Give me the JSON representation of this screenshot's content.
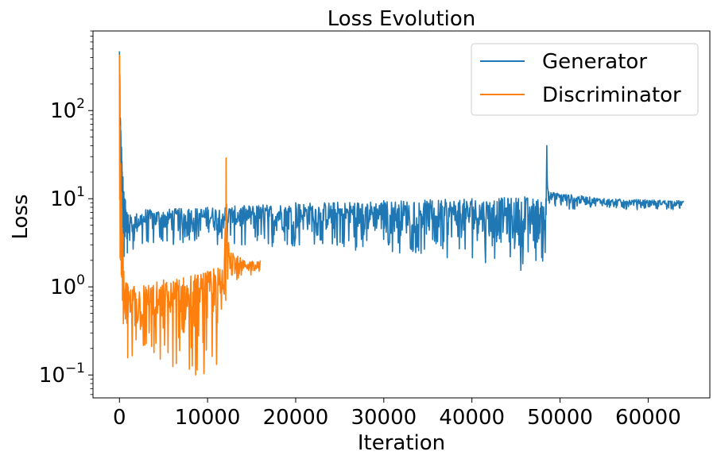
{
  "chart_data": {
    "type": "line",
    "title": "Loss Evolution",
    "xlabel": "Iteration",
    "ylabel": "Loss",
    "yscale": "log",
    "xlim": [
      -3000,
      67000
    ],
    "ylim": [
      0.055,
      800
    ],
    "x_ticks": [
      0,
      10000,
      20000,
      30000,
      40000,
      50000,
      60000
    ],
    "x_tick_labels": [
      "0",
      "10000",
      "20000",
      "30000",
      "40000",
      "50000",
      "60000"
    ],
    "y_ticks": [
      0.1,
      1,
      10,
      100
    ],
    "y_tick_labels": [
      {
        "base": "10",
        "exp": "−1"
      },
      {
        "base": "10",
        "exp": "0"
      },
      {
        "base": "10",
        "exp": "1"
      },
      {
        "base": "10",
        "exp": "2"
      }
    ],
    "grid": false,
    "legend_position": "top-right",
    "series": [
      {
        "name": "Generator",
        "color": "#1f77b4",
        "envelope": [
          {
            "x": 0,
            "lo": 10,
            "hi": 470
          },
          {
            "x": 150,
            "lo": 3.0,
            "hi": 60
          },
          {
            "x": 500,
            "lo": 2.0,
            "hi": 12
          },
          {
            "x": 1000,
            "lo": 2.5,
            "hi": 6.5
          },
          {
            "x": 3000,
            "lo": 3.0,
            "hi": 7.5
          },
          {
            "x": 10000,
            "lo": 3.0,
            "hi": 8.0
          },
          {
            "x": 20000,
            "lo": 2.8,
            "hi": 9.0
          },
          {
            "x": 30000,
            "lo": 2.5,
            "hi": 9.5
          },
          {
            "x": 40000,
            "lo": 2.0,
            "hi": 10.0
          },
          {
            "x": 46000,
            "lo": 1.5,
            "hi": 10.5
          },
          {
            "x": 48400,
            "lo": 1.8,
            "hi": 10.0
          },
          {
            "x": 48500,
            "lo": 8.0,
            "hi": 40
          },
          {
            "x": 48700,
            "lo": 7.5,
            "hi": 12
          },
          {
            "x": 55000,
            "lo": 7.5,
            "hi": 10.0
          },
          {
            "x": 64000,
            "lo": 7.5,
            "hi": 9.5
          }
        ]
      },
      {
        "name": "Discriminator",
        "color": "#ff7f0e",
        "envelope": [
          {
            "x": 0,
            "lo": 1.2,
            "hi": 430
          },
          {
            "x": 150,
            "lo": 0.6,
            "hi": 25
          },
          {
            "x": 500,
            "lo": 0.2,
            "hi": 1.5
          },
          {
            "x": 1000,
            "lo": 0.15,
            "hi": 1.0
          },
          {
            "x": 5000,
            "lo": 0.12,
            "hi": 1.2
          },
          {
            "x": 10000,
            "lo": 0.09,
            "hi": 1.5
          },
          {
            "x": 11900,
            "lo": 0.1,
            "hi": 1.8
          },
          {
            "x": 12100,
            "lo": 1.0,
            "hi": 29
          },
          {
            "x": 12400,
            "lo": 1.2,
            "hi": 3.0
          },
          {
            "x": 14000,
            "lo": 1.2,
            "hi": 2.0
          },
          {
            "x": 16000,
            "lo": 1.3,
            "hi": 2.0
          }
        ]
      }
    ]
  }
}
